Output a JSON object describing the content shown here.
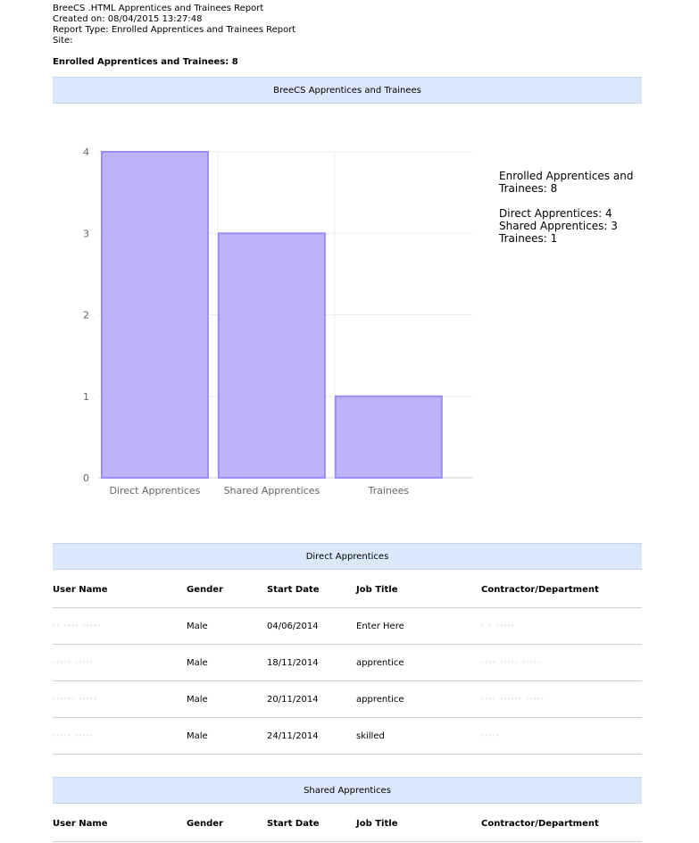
{
  "report": {
    "title": "BreeCS .HTML Apprentices and Trainees Report",
    "created": "Created on: 08/04/2015 13:27:48",
    "type": "Report Type: Enrolled Apprentices and Trainees Report",
    "site": "Site:",
    "summary": "Enrolled Apprentices and Trainees: 8"
  },
  "chart_section": {
    "title": "BreeCS Apprentices and Trainees"
  },
  "chart_data": {
    "type": "bar",
    "categories": [
      "Direct Apprentices",
      "Shared Apprentices",
      "Trainees"
    ],
    "values": [
      4,
      3,
      1
    ],
    "ylim": [
      0,
      4
    ],
    "yticks": [
      "0",
      "1",
      "2",
      "3",
      "4"
    ],
    "grid": true,
    "colors": {
      "fill": "#bcb3fb",
      "stroke": "#9a8ef5"
    }
  },
  "legend": {
    "total_line1": "Enrolled Apprentices and",
    "total_line2": "Trainees: 8",
    "direct": "Direct Apprentices: 4",
    "shared": "Shared Apprentices: 3",
    "trainees": "Trainees: 1"
  },
  "columns": [
    "User Name",
    "Gender",
    "Start Date",
    "Job Title",
    "Contractor/Department"
  ],
  "direct": {
    "title": "Direct Apprentices",
    "rows": [
      [
        "·· ···· ·····",
        "Male",
        "04/06/2014",
        "Enter Here",
        "· · ·····"
      ],
      [
        "····· ·····",
        "Male",
        "18/11/2014",
        "apprentice",
        "···· ····· ·····"
      ],
      [
        "······ ·····",
        "Male",
        "20/11/2014",
        "apprentice",
        "···· ······ ·····"
      ],
      [
        "····· ·····",
        "Male",
        "24/11/2014",
        "skilled",
        "·····"
      ]
    ]
  },
  "shared": {
    "title": "Shared Apprentices"
  }
}
